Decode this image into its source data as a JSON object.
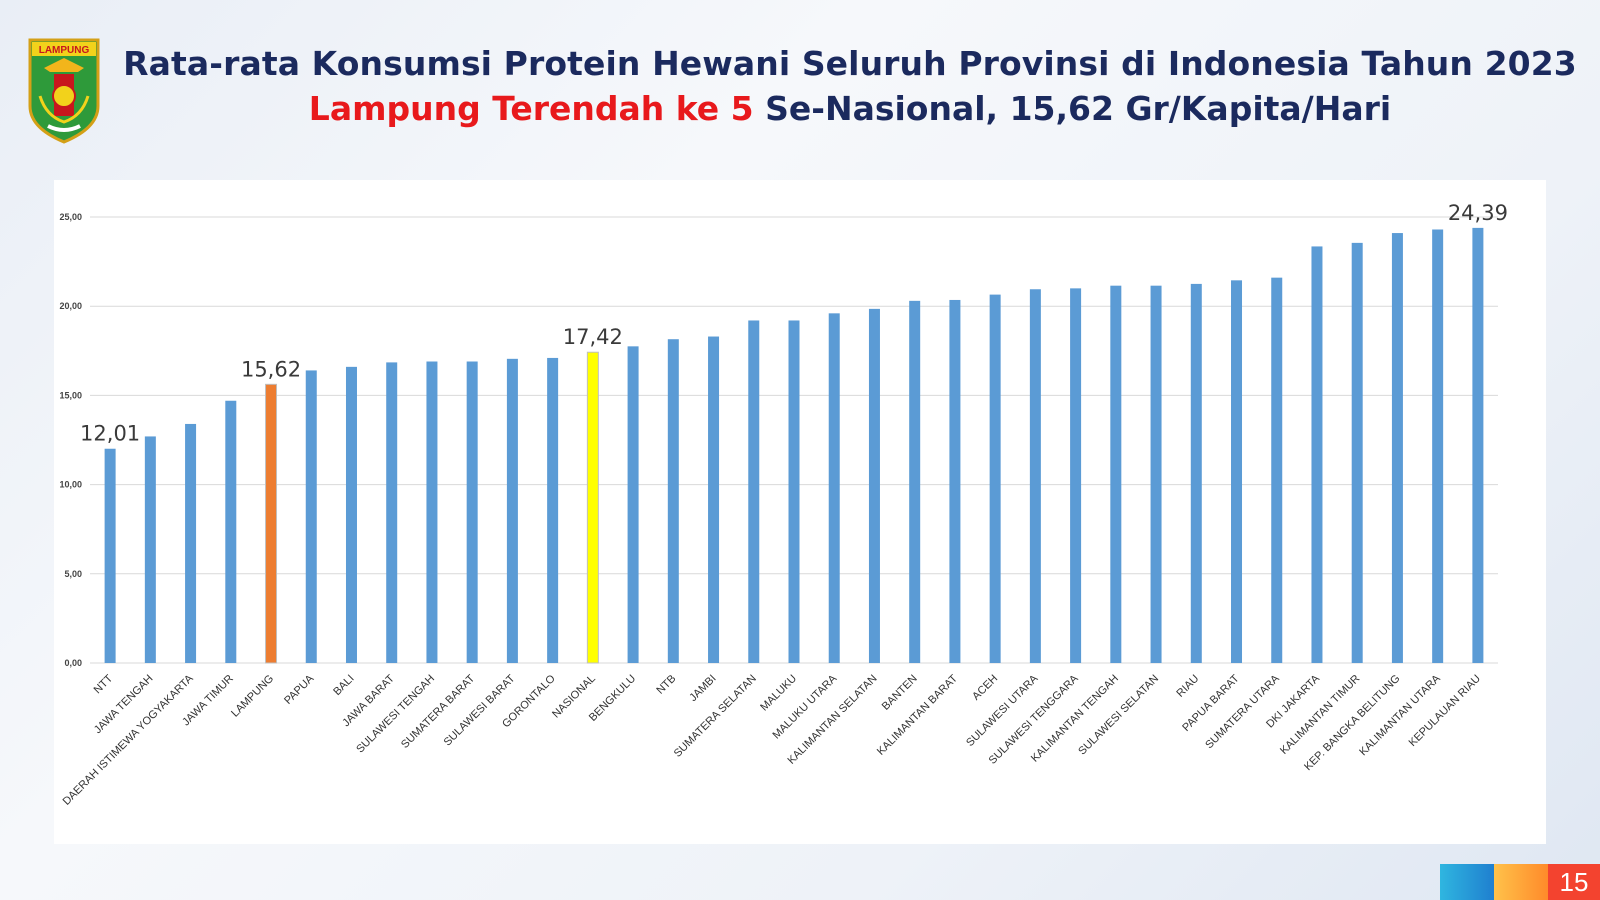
{
  "logo": {
    "text": "LAMPUNG"
  },
  "header": {
    "title": "Rata-rata Konsumsi Protein Hewani Seluruh Provinsi di Indonesia Tahun 2023",
    "subtitle_highlight": "Lampung Terendah ke 5",
    "subtitle_rest": " Se-Nasional, 15,62 Gr/Kapita/Hari"
  },
  "page_number": "15",
  "colors": {
    "default_bar": "#5b9bd5",
    "lampung_bar": "#ed7d31",
    "nasional_bar": "#ffff00",
    "title": "#1b2a5e",
    "highlight": "#e8191c"
  },
  "chart_data": {
    "type": "bar",
    "title": "",
    "xlabel": "",
    "ylabel": "",
    "ylim": [
      0,
      25
    ],
    "yticks": [
      "0,00",
      "5,00",
      "10,00",
      "15,00",
      "20,00",
      "25,00"
    ],
    "grid": true,
    "categories": [
      "NTT",
      "JAWA TENGAH",
      "DAERAH ISTIMEWA YOGYAKARTA",
      "JAWA TIMUR",
      "LAMPUNG",
      "PAPUA",
      "BALI",
      "JAWA BARAT",
      "SULAWESI TENGAH",
      "SUMATERA BARAT",
      "SULAWESI BARAT",
      "GORONTALO",
      "NASIONAL",
      "BENGKULU",
      "NTB",
      "JAMBI",
      "SUMATERA SELATAN",
      "MALUKU",
      "MALUKU UTARA",
      "KALIMANTAN SELATAN",
      "BANTEN",
      "KALIMANTAN BARAT",
      "ACEH",
      "SULAWESI UTARA",
      "SULAWESI TENGGARA",
      "KALIMANTAN TENGAH",
      "SULAWESI SELATAN",
      "RIAU",
      "PAPUA BARAT",
      "SUMATERA UTARA",
      "DKI JAKARTA",
      "KALIMANTAN TIMUR",
      "KEP. BANGKA BELITUNG",
      "KALIMANTAN UTARA",
      "KEPULAUAN RIAU"
    ],
    "values": [
      12.01,
      12.7,
      13.4,
      14.7,
      15.62,
      16.4,
      16.6,
      16.85,
      16.9,
      16.9,
      17.05,
      17.1,
      17.42,
      17.75,
      18.15,
      18.3,
      19.2,
      19.2,
      19.6,
      19.85,
      20.3,
      20.35,
      20.65,
      20.95,
      21.0,
      21.15,
      21.15,
      21.25,
      21.45,
      21.6,
      23.35,
      23.55,
      24.1,
      24.3,
      24.39
    ],
    "highlights": {
      "LAMPUNG": "lampung_bar",
      "NASIONAL": "nasional_bar"
    },
    "data_labels": [
      {
        "category": "NTT",
        "text": "12,01"
      },
      {
        "category": "LAMPUNG",
        "text": "15,62"
      },
      {
        "category": "NASIONAL",
        "text": "17,42"
      },
      {
        "category": "KEPULAUAN RIAU",
        "text": "24,39"
      }
    ]
  }
}
